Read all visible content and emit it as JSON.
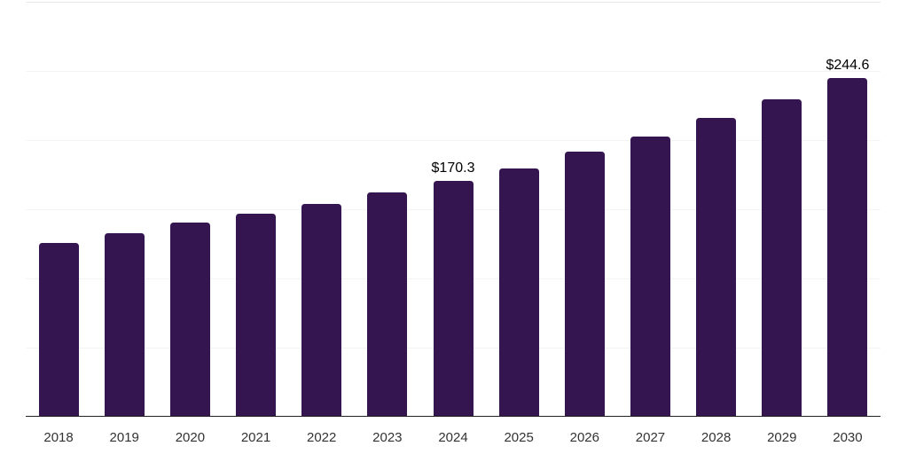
{
  "chart_data": {
    "type": "bar",
    "title": "",
    "xlabel": "",
    "ylabel": "",
    "legend_position": "none",
    "grid": "horizontal",
    "categories": [
      "2018",
      "2019",
      "2020",
      "2021",
      "2022",
      "2023",
      "2024",
      "2025",
      "2026",
      "2027",
      "2028",
      "2029",
      "2030"
    ],
    "values": [
      125.6,
      132.4,
      140.2,
      146.8,
      153.6,
      162.0,
      170.3,
      179.3,
      191.4,
      202.3,
      215.8,
      229.3,
      244.6
    ],
    "data_labels": [
      {
        "category": "2024",
        "label": "$170.3"
      },
      {
        "category": "2030",
        "label": "$244.6"
      }
    ],
    "ylim": [
      0,
      300
    ],
    "gridline_values": [
      50,
      100,
      150,
      200,
      250,
      300
    ],
    "colors": {
      "bar": "#35154f",
      "axis_line": "#222222",
      "gridline": "#f4f4f4",
      "gridline_top": "#e8e8e8",
      "tick_label": "#333333",
      "data_label": "#000000",
      "background": "#ffffff"
    }
  }
}
